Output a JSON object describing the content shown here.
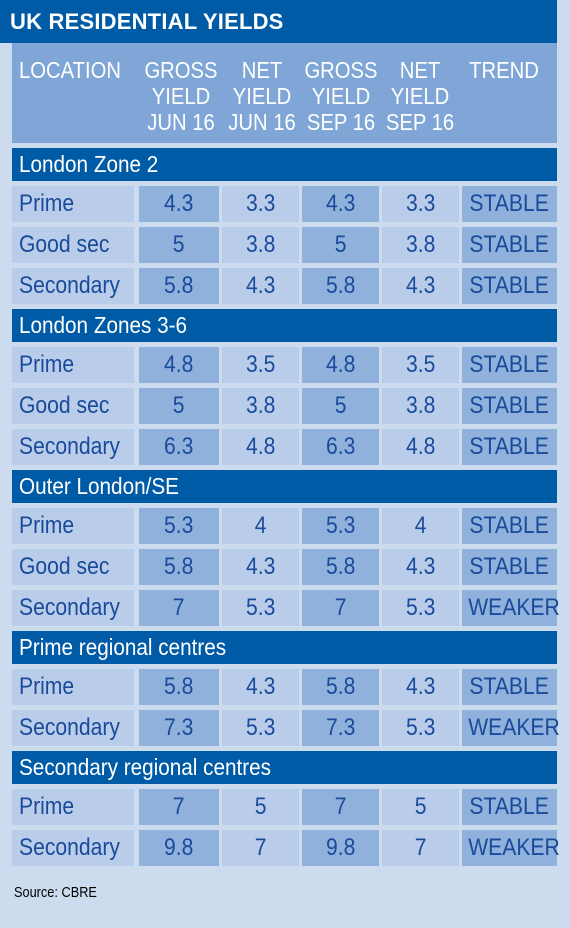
{
  "title": "UK RESIDENTIAL YIELDS",
  "columns": [
    "LOCATION",
    "GROSS\nYIELD\nJUN 16",
    "NET\nYIELD\nJUN 16",
    "GROSS\nYIELD\nSEP 16",
    "NET\nYIELD\nSEP 16",
    "TREND"
  ],
  "source": "Source: CBRE",
  "colors": {
    "header_bar": "#005ba6",
    "header_cols": "#7fa6d6",
    "cell_light": "#b9cdea",
    "cell_dark": "#8fb1dc",
    "text": "#1a4a9a",
    "page": "#ccdbee"
  },
  "chart_data": {
    "type": "table",
    "title": "UK RESIDENTIAL YIELDS",
    "columns": [
      "LOCATION",
      "GROSS YIELD JUN 16",
      "NET YIELD JUN 16",
      "GROSS YIELD SEP 16",
      "NET YIELD SEP 16",
      "TREND"
    ],
    "groups": [
      {
        "name": "London Zone 2",
        "rows": [
          {
            "location": "Prime",
            "values": [
              "4.3",
              "3.3",
              "4.3",
              "3.3"
            ],
            "trend": "STABLE"
          },
          {
            "location": "Good sec",
            "values": [
              "5",
              "3.8",
              "5",
              "3.8"
            ],
            "trend": "STABLE"
          },
          {
            "location": "Secondary",
            "values": [
              "5.8",
              "4.3",
              "5.8",
              "4.3"
            ],
            "trend": "STABLE"
          }
        ]
      },
      {
        "name": "London Zones 3-6",
        "rows": [
          {
            "location": "Prime",
            "values": [
              "4.8",
              "3.5",
              "4.8",
              "3.5"
            ],
            "trend": "STABLE"
          },
          {
            "location": "Good sec",
            "values": [
              "5",
              "3.8",
              "5",
              "3.8"
            ],
            "trend": "STABLE"
          },
          {
            "location": "Secondary",
            "values": [
              "6.3",
              "4.8",
              "6.3",
              "4.8"
            ],
            "trend": "STABLE"
          }
        ]
      },
      {
        "name": "Outer London/SE",
        "rows": [
          {
            "location": "Prime",
            "values": [
              "5.3",
              "4",
              "5.3",
              "4"
            ],
            "trend": "STABLE"
          },
          {
            "location": "Good sec",
            "values": [
              "5.8",
              "4.3",
              "5.8",
              "4.3"
            ],
            "trend": "STABLE"
          },
          {
            "location": "Secondary",
            "values": [
              "7",
              "5.3",
              "7",
              "5.3"
            ],
            "trend": "WEAKER"
          }
        ]
      },
      {
        "name": "Prime regional centres",
        "rows": [
          {
            "location": "Prime",
            "values": [
              "5.8",
              "4.3",
              "5.8",
              "4.3"
            ],
            "trend": "STABLE"
          },
          {
            "location": "Secondary",
            "values": [
              "7.3",
              "5.3",
              "7.3",
              "5.3"
            ],
            "trend": "WEAKER"
          }
        ]
      },
      {
        "name": "Secondary regional centres",
        "rows": [
          {
            "location": "Prime",
            "values": [
              "7",
              "5",
              "7",
              "5"
            ],
            "trend": "STABLE"
          },
          {
            "location": "Secondary",
            "values": [
              "9.8",
              "7",
              "9.8",
              "7"
            ],
            "trend": "WEAKER"
          }
        ]
      }
    ]
  }
}
